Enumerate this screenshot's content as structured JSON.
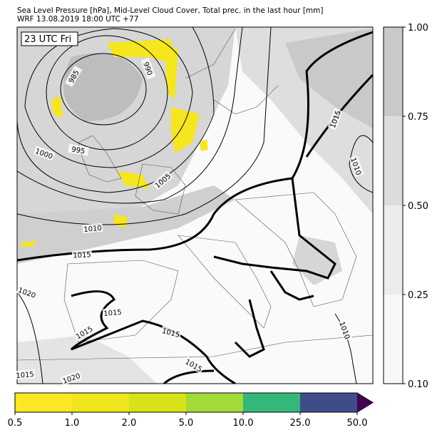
{
  "header": {
    "line1": "Sea Level Pressure [hPa], Mid-Level Cloud Cover, Total prec. in the last hour [mm]",
    "line2": "WRF 13.08.2019 18:00 UTC +77"
  },
  "map": {
    "time_label": "23 UTC Fri",
    "contour_labels": [
      "985",
      "990",
      "995",
      "1000",
      "1005",
      "1010",
      "1015",
      "1015",
      "1010",
      "1020",
      "1015",
      "1015",
      "1015",
      "1015",
      "1015",
      "1020",
      "1010"
    ]
  },
  "cloud_colorbar": {
    "ticks": [
      "0.10",
      "0.25",
      "0.50",
      "0.75",
      "1.00"
    ]
  },
  "precip_colorbar": {
    "ticks": [
      "0.5",
      "1.0",
      "2.0",
      "5.0",
      "10.0",
      "25.0",
      "50.0"
    ]
  }
}
